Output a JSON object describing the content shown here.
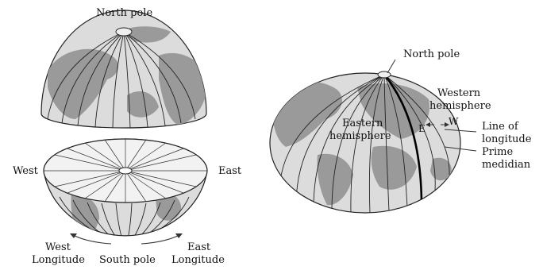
{
  "left_figure": {
    "north_pole": "North pole",
    "west": "West",
    "east": "East",
    "west_longitude_1": "West",
    "west_longitude_2": "Longitude",
    "south_pole": "South pole",
    "east_longitude_1": "East",
    "east_longitude_2": "Longitude"
  },
  "right_figure": {
    "north_pole": "North pole",
    "western_hemisphere_1": "Western",
    "western_hemisphere_2": "hemisphere",
    "eastern_hemisphere_1": "Eastern",
    "eastern_hemisphere_2": "hemisphere",
    "e_marker": "E",
    "w_marker": "W",
    "line_of_longitude_1": "Line of",
    "line_of_longitude_2": "longitude",
    "prime_meridian_1": "Prime",
    "prime_meridian_2": "medidian"
  },
  "colors": {
    "land": "#9a9a9a",
    "ocean": "#dcdcdc",
    "lines": "#222222"
  }
}
